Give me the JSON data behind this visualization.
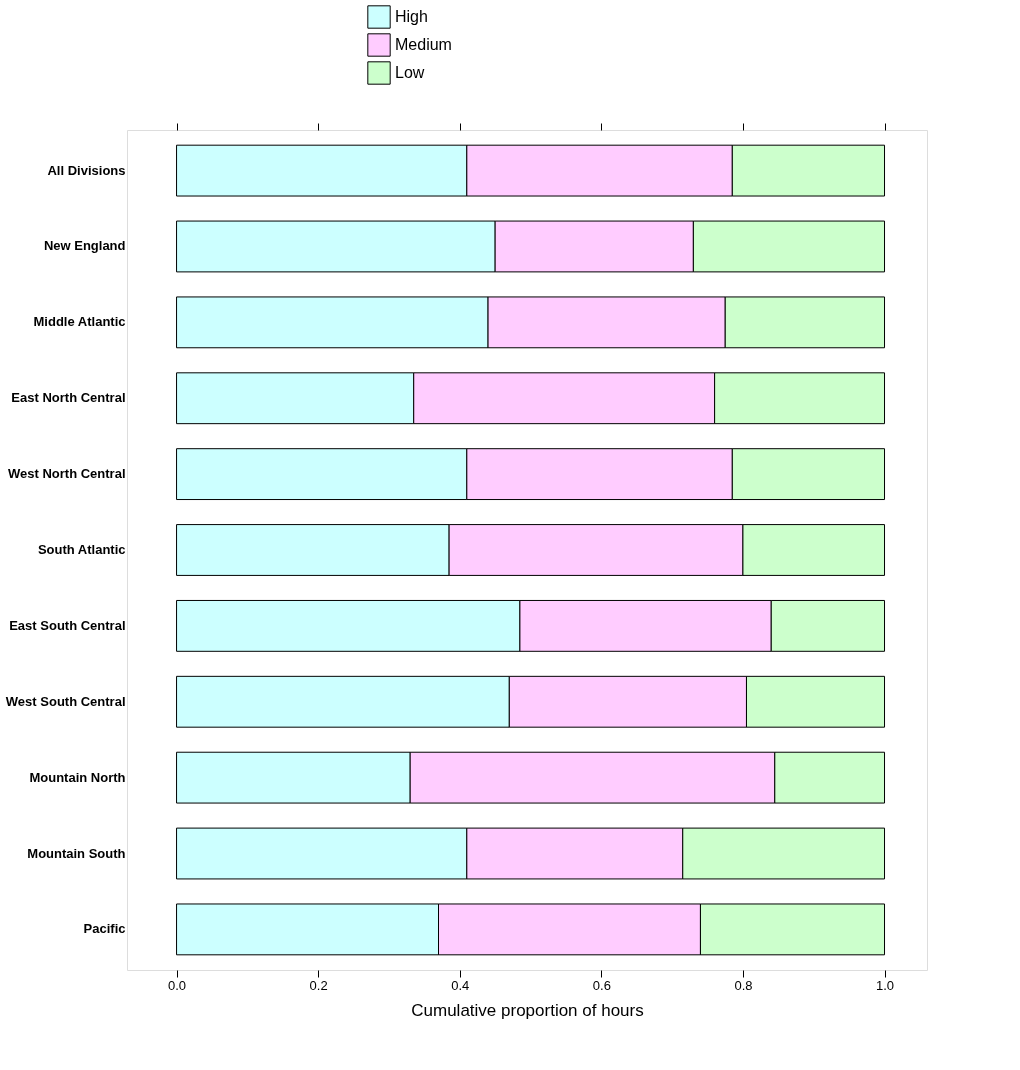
{
  "chart_data": {
    "type": "bar",
    "orientation": "horizontal",
    "stacked": true,
    "xlabel": "Cumulative proportion of hours",
    "categories": [
      "All Divisions",
      "New England",
      "Middle Atlantic",
      "East North Central",
      "West North Central",
      "South Atlantic",
      "East South Central",
      "West South Central",
      "Mountain North",
      "Mountain South",
      "Pacific"
    ],
    "series": [
      {
        "name": "High",
        "color": "#ccffff",
        "values": [
          0.41,
          0.45,
          0.44,
          0.335,
          0.41,
          0.385,
          0.485,
          0.47,
          0.33,
          0.41,
          0.37
        ]
      },
      {
        "name": "Medium",
        "color": "#ffccff",
        "values": [
          0.375,
          0.28,
          0.335,
          0.425,
          0.375,
          0.415,
          0.355,
          0.335,
          0.515,
          0.305,
          0.37
        ]
      },
      {
        "name": "Low",
        "color": "#ccffcc",
        "values": [
          0.215,
          0.27,
          0.225,
          0.24,
          0.215,
          0.2,
          0.16,
          0.195,
          0.155,
          0.285,
          0.26
        ]
      }
    ],
    "xlim": [
      -0.07,
      1.06
    ],
    "xticks": [
      {
        "value": 0,
        "label": "0.0"
      },
      0.2,
      0.4,
      0.6,
      0.8,
      {
        "value": 1,
        "label": "1.0"
      }
    ],
    "legend": "top",
    "grid": false
  }
}
